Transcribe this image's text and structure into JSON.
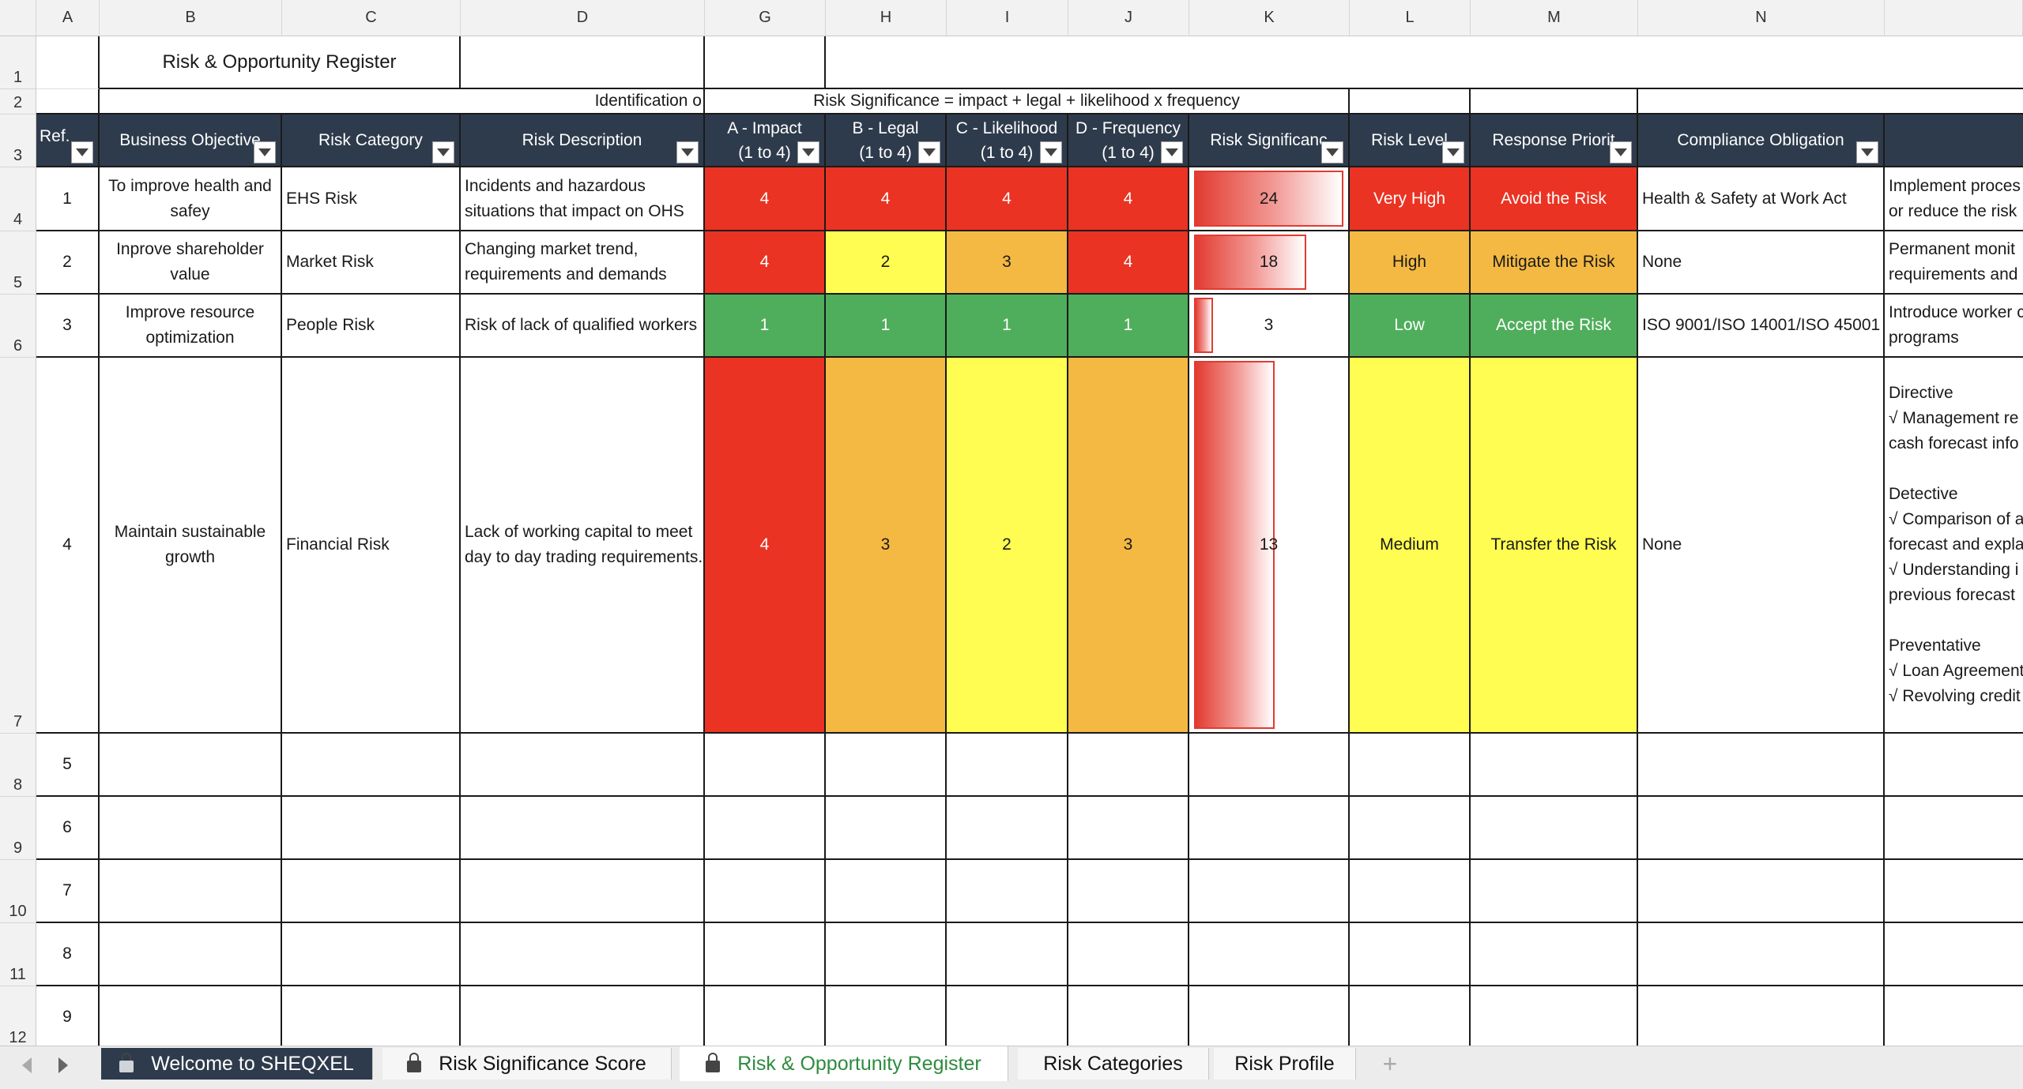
{
  "columns": [
    "A",
    "B",
    "C",
    "D",
    "G",
    "H",
    "I",
    "J",
    "K",
    "L",
    "M",
    "N"
  ],
  "rows": [
    "1",
    "2",
    "3",
    "4",
    "5",
    "6",
    "7",
    "8",
    "9",
    "10",
    "11",
    "12"
  ],
  "title": "Risk & Opportunity Register",
  "row2": {
    "left": "Identification o",
    "formula": "Risk Significance = impact + legal + likelihood x  frequency"
  },
  "headers": {
    "ref": "Ref.",
    "objective": "Business Objective",
    "category": "Risk Category",
    "description": "Risk Description",
    "impact": "A - Impact\n(1 to 4)",
    "legal": "B - Legal\n(1 to 4)",
    "likelihood": "C - Likelihood\n(1 to 4)",
    "frequency": "D - Frequency\n(1 to 4)",
    "significance": "Risk Significanc",
    "level": "Risk Level",
    "priority": "Response Priorit",
    "compliance": "Compliance Obligation"
  },
  "risks": [
    {
      "ref": "1",
      "objective": "To improve health and safey",
      "category": "EHS Risk",
      "description": "Incidents and hazardous situations that impact on OHS",
      "impact": "4",
      "legal": "4",
      "likelihood": "4",
      "frequency": "4",
      "significance": "24",
      "significance_fill": 1.0,
      "level": "Very High",
      "priority": "Avoid the Risk",
      "compliance": "Health & Safety at Work Act",
      "controls": "Implement proces\nor reduce the risk"
    },
    {
      "ref": "2",
      "objective": "Inprove shareholder value",
      "category": "Market Risk",
      "description": "Changing market trend, requirements and demands",
      "impact": "4",
      "legal": "2",
      "likelihood": "3",
      "frequency": "4",
      "significance": "18",
      "significance_fill": 0.75,
      "level": "High",
      "priority": "Mitigate the Risk",
      "compliance": "None",
      "controls": "Permanent monit\nrequirements and"
    },
    {
      "ref": "3",
      "objective": "Improve resource optimization",
      "category": "People Risk",
      "description": "Risk of lack of qualified workers",
      "impact": "1",
      "legal": "1",
      "likelihood": "1",
      "frequency": "1",
      "significance": "3",
      "significance_fill": 0.125,
      "level": "Low",
      "priority": "Accept the Risk",
      "compliance": "ISO 9001/ISO 14001/ISO 45001",
      "controls": "Introduce worker c\nprograms"
    },
    {
      "ref": "4",
      "objective": "Maintain sustainable growth",
      "category": "Financial Risk",
      "description": "Lack of working capital to meet day to day trading requirements.",
      "impact": "4",
      "legal": "3",
      "likelihood": "2",
      "frequency": "3",
      "significance": "13",
      "significance_fill": 0.54,
      "level": "Medium",
      "priority": "Transfer the Risk",
      "compliance": "None",
      "controls": "Directive\n√ Management re\ncash forecast info\n\nDetective\n√ Comparison of a\nforecast and expla\n√ Understanding i\nprevious forecast\n\nPreventative\n√ Loan Agreement\n√ Revolving credit"
    }
  ],
  "empty_refs": [
    "5",
    "6",
    "7",
    "8",
    "9"
  ],
  "tabs": [
    {
      "label": "Welcome to SHEQXEL",
      "locked": true,
      "style": "dark"
    },
    {
      "label": "Risk Significance Score",
      "locked": true,
      "style": "light"
    },
    {
      "label": "Risk & Opportunity Register",
      "locked": true,
      "style": "active"
    },
    {
      "label": "Risk Categories",
      "locked": false,
      "style": "light"
    },
    {
      "label": "Risk Profile",
      "locked": false,
      "style": "light"
    }
  ],
  "add_tab": "+",
  "colors": {
    "header": "#2e3b4c",
    "red": "#ea3323",
    "orange": "#f4b942",
    "yellow": "#fffd51",
    "green": "#4fae5b",
    "active_tab": "#2e8b3e"
  }
}
